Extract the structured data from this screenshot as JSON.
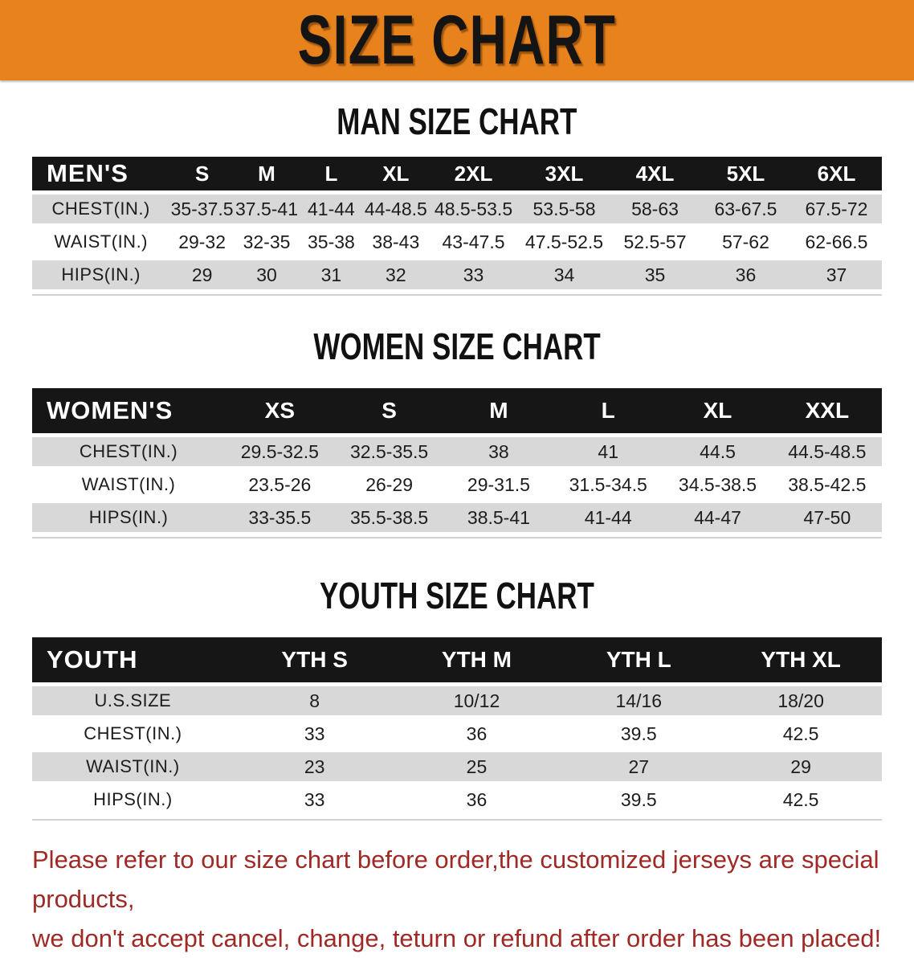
{
  "banner": {
    "title": "SIZE CHART"
  },
  "sections": {
    "man": {
      "heading": "MAN SIZE CHART"
    },
    "women": {
      "heading": "WOMEN SIZE CHART"
    },
    "youth": {
      "heading": "YOUTH SIZE CHART"
    }
  },
  "tables": {
    "men": {
      "header": [
        "MEN'S",
        "S",
        "M",
        "L",
        "XL",
        "2XL",
        "3XL",
        "4XL",
        "5XL",
        "6XL"
      ],
      "rows": [
        {
          "label": "CHEST(IN.)",
          "values": [
            "35-37.5",
            "37.5-41",
            "41-44",
            "44-48.5",
            "48.5-53.5",
            "53.5-58",
            "58-63",
            "63-67.5",
            "67.5-72"
          ]
        },
        {
          "label": "WAIST(IN.)",
          "values": [
            "29-32",
            "32-35",
            "35-38",
            "38-43",
            "43-47.5",
            "47.5-52.5",
            "52.5-57",
            "57-62",
            "62-66.5"
          ]
        },
        {
          "label": "HIPS(IN.)",
          "values": [
            "29",
            "30",
            "31",
            "32",
            "33",
            "34",
            "35",
            "36",
            "37"
          ]
        }
      ]
    },
    "women": {
      "header": [
        "WOMEN'S",
        "XS",
        "S",
        "M",
        "L",
        "XL",
        "XXL"
      ],
      "rows": [
        {
          "label": "CHEST(IN.)",
          "values": [
            "29.5-32.5",
            "32.5-35.5",
            "38",
            "41",
            "44.5",
            "44.5-48.5"
          ]
        },
        {
          "label": "WAIST(IN.)",
          "values": [
            "23.5-26",
            "26-29",
            "29-31.5",
            "31.5-34.5",
            "34.5-38.5",
            "38.5-42.5"
          ]
        },
        {
          "label": "HIPS(IN.)",
          "values": [
            "33-35.5",
            "35.5-38.5",
            "38.5-41",
            "41-44",
            "44-47",
            "47-50"
          ]
        }
      ]
    },
    "youth": {
      "header": [
        "YOUTH",
        "YTH S",
        "YTH M",
        "YTH L",
        "YTH XL"
      ],
      "rows": [
        {
          "label": "U.S.SIZE",
          "values": [
            "8",
            "10/12",
            "14/16",
            "18/20"
          ]
        },
        {
          "label": "CHEST(IN.)",
          "values": [
            "33",
            "36",
            "39.5",
            "42.5"
          ]
        },
        {
          "label": "WAIST(IN.)",
          "values": [
            "23",
            "25",
            "27",
            "29"
          ]
        },
        {
          "label": "HIPS(IN.)",
          "values": [
            "33",
            "36",
            "39.5",
            "42.5"
          ]
        }
      ]
    }
  },
  "notice": {
    "lines": [
      "Please refer to our size chart before order,the customized jerseys are special products,",
      "we don't accept cancel, change, teturn or refund after order has been placed!"
    ]
  },
  "colors": {
    "banner_bg": "#E8821C",
    "header_band": "#161616",
    "row_stripe": "#D8D8D8",
    "notice_red": "#9F2A25",
    "heading_black": "#111111"
  }
}
